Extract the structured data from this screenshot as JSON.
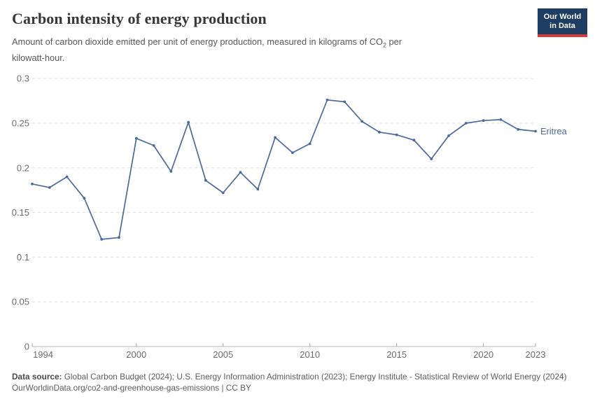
{
  "header": {
    "title": "Carbon intensity of energy production",
    "subtitle_pre": "Amount of carbon dioxide emitted per unit of energy production, measured in kilograms of CO",
    "subtitle_sub": "2",
    "subtitle_mid": " per",
    "subtitle_line2": "kilowatt-hour.",
    "logo_line1": "Our World",
    "logo_line2": "in Data"
  },
  "chart_data": {
    "type": "line",
    "title": "Carbon intensity of energy production",
    "entity_label": "Eritrea",
    "x": [
      1994,
      1995,
      1996,
      1997,
      1998,
      1999,
      2000,
      2001,
      2002,
      2003,
      2004,
      2005,
      2006,
      2007,
      2008,
      2009,
      2010,
      2011,
      2012,
      2013,
      2014,
      2015,
      2016,
      2017,
      2018,
      2019,
      2020,
      2021,
      2022,
      2023
    ],
    "series": [
      {
        "name": "Eritrea",
        "color": "#4c6a9c",
        "values": [
          0.182,
          0.178,
          0.19,
          0.166,
          0.12,
          0.122,
          0.233,
          0.225,
          0.196,
          0.251,
          0.186,
          0.172,
          0.195,
          0.176,
          0.234,
          0.217,
          0.227,
          0.276,
          0.274,
          0.252,
          0.24,
          0.237,
          0.231,
          0.21,
          0.236,
          0.25,
          0.253,
          0.254,
          0.243,
          0.241
        ]
      }
    ],
    "xlim": [
      1994,
      2023
    ],
    "ylim": [
      0,
      0.3
    ],
    "x_ticks": [
      {
        "v": 1994,
        "label": "1994"
      },
      {
        "v": 2000,
        "label": "2000"
      },
      {
        "v": 2005,
        "label": "2005"
      },
      {
        "v": 2010,
        "label": "2010"
      },
      {
        "v": 2015,
        "label": "2015"
      },
      {
        "v": 2020,
        "label": "2020"
      },
      {
        "v": 2023,
        "label": "2023"
      }
    ],
    "y_ticks": [
      {
        "v": 0,
        "label": "0"
      },
      {
        "v": 0.05,
        "label": "0.05"
      },
      {
        "v": 0.1,
        "label": "0.1"
      },
      {
        "v": 0.15,
        "label": "0.15"
      },
      {
        "v": 0.2,
        "label": "0.2"
      },
      {
        "v": 0.25,
        "label": "0.25"
      },
      {
        "v": 0.3,
        "label": "0.3"
      }
    ],
    "grid": "horizontal-dashed",
    "legend_position": "end-of-line-label",
    "colors": {
      "line": "#4c6a9c",
      "gridline": "#dedede",
      "axis": "#b3b3b3",
      "tick": "#a5a5a5",
      "tick_label": "#6b6b6b"
    }
  },
  "footer": {
    "source_label": "Data source:",
    "source_text": " Global Carbon Budget (2024); U.S. Energy Information Administration (2023); Energy Institute - Statistical Review of World Energy (2024)",
    "url_line": "OurWorldinData.org/co2-and-greenhouse-gas-emissions | CC BY"
  }
}
